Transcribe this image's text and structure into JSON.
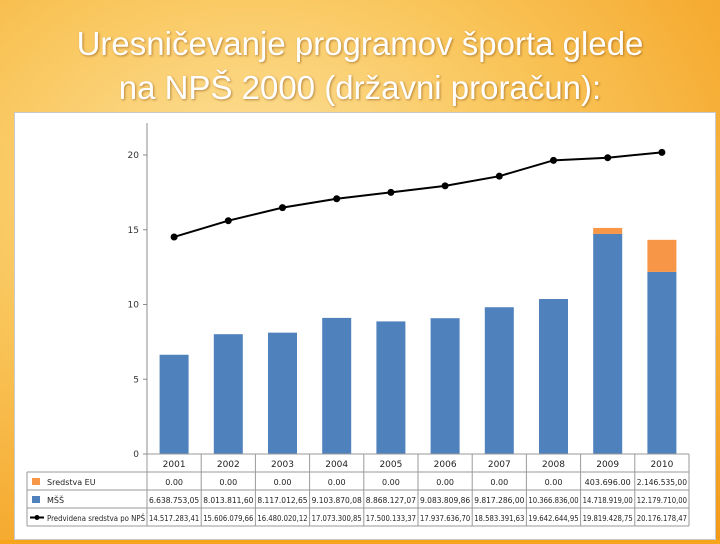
{
  "title_line1": "Uresničevanje programov športa glede",
  "title_line2": "na NPŠ 2000 (državni proračun):",
  "colors": {
    "msz": "#4f81bd",
    "eu": "#f79646",
    "line": "#000000"
  },
  "chart_data": {
    "type": "bar",
    "stacked": true,
    "categories": [
      "2001",
      "2002",
      "2003",
      "2004",
      "2005",
      "2006",
      "2007",
      "2008",
      "2009",
      "2010"
    ],
    "ylim": [
      0,
      20
    ],
    "y_ticks": [
      0,
      5,
      10,
      15,
      20
    ],
    "grid": false,
    "legend": "table-bottom",
    "series": [
      {
        "name": "Sredstva EU",
        "kind": "bar",
        "values": [
          0,
          0,
          0,
          0,
          0,
          0,
          0,
          0,
          0.40369606,
          2.146535
        ],
        "labels": [
          "0.00",
          "0.00",
          "0.00",
          "0.00",
          "0.00",
          "0.00",
          "0.00",
          "0.00",
          "403.696.00",
          "2.146.535,00"
        ]
      },
      {
        "name": "MŠŠ",
        "kind": "bar",
        "values": [
          6.63875305,
          8.0138116,
          8.11701265,
          9.10387008,
          8.86812707,
          9.08380986,
          9.817286,
          10.366836,
          14.718919,
          12.17971
        ],
        "labels": [
          "6.638.753,05",
          "8.013.811,60",
          "8.117.012,65",
          "9.103.870,08",
          "8.868.127,07",
          "9.083.809,86",
          "9.817.286,00",
          "10.366.836,00",
          "14.718.919,00",
          "12.179.710,00"
        ]
      },
      {
        "name": "Predvidena sredstva po NPŠ",
        "kind": "line",
        "values": [
          14.51728341,
          15.60607966,
          16.48002012,
          17.07330085,
          17.50013337,
          17.9376367,
          18.58339163,
          19.64264495,
          19.81942875,
          20.17617847
        ],
        "labels": [
          "14.517.283,41",
          "15.606.079,66",
          "16.480.020,12",
          "17.073.300,85",
          "17.500.133,37",
          "17.937.636,70",
          "18.583.391,63",
          "19.642.644,95",
          "19.819.428,75",
          "20.176.178,47"
        ]
      }
    ]
  }
}
